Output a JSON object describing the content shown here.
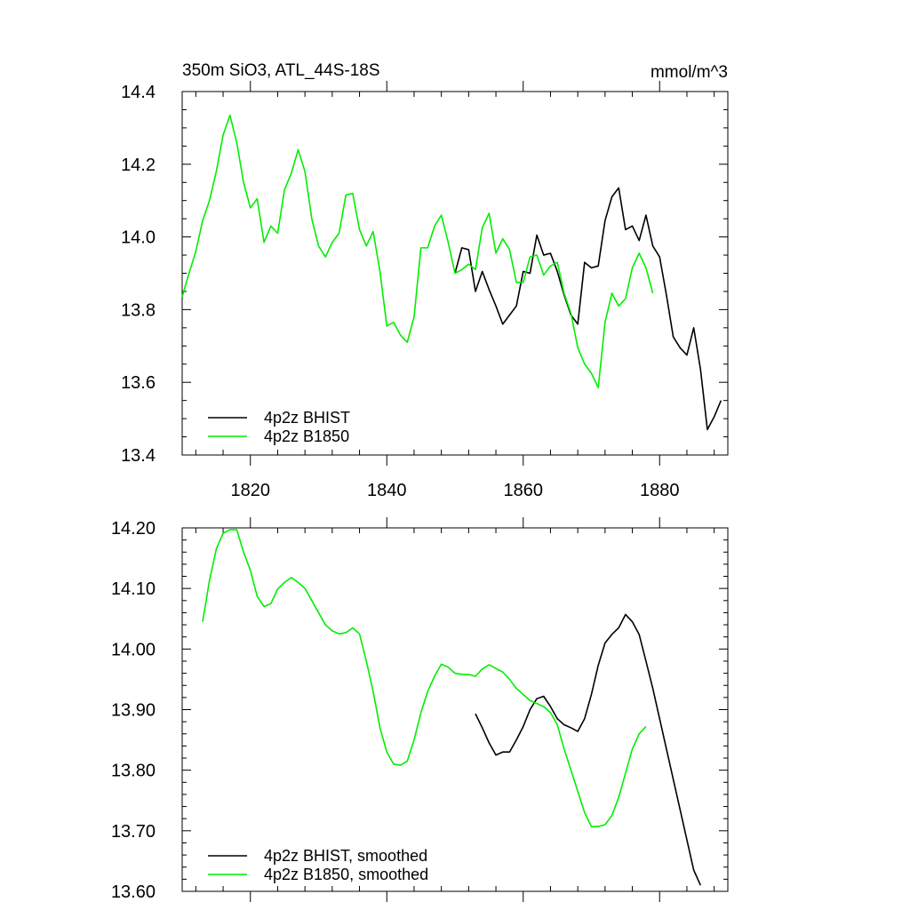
{
  "chart_data": [
    {
      "type": "line",
      "title": "350m SiO3, ATL_44S-18S",
      "units": "mmol/m^3",
      "xlim": [
        1810,
        1890
      ],
      "ylim": [
        13.4,
        14.4
      ],
      "x_ticks": [
        1820,
        1840,
        1860,
        1880
      ],
      "x_tick_labels": [
        "1820",
        "1840",
        "1860",
        "1880"
      ],
      "y_ticks": [
        13.4,
        13.6,
        13.8,
        14.0,
        14.2,
        14.4
      ],
      "y_tick_labels": [
        "13.4",
        "13.6",
        "13.8",
        "14.0",
        "14.2",
        "14.4"
      ],
      "legend_position": "bottom-left",
      "series": [
        {
          "name": "4p2z BHIST",
          "color": "#000000",
          "x_start": 1850,
          "values": [
            13.9,
            13.97,
            13.965,
            13.85,
            13.905,
            13.855,
            13.81,
            13.76,
            13.785,
            13.81,
            13.905,
            13.9,
            14.005,
            13.95,
            13.955,
            13.905,
            13.84,
            13.785,
            13.76,
            13.93,
            13.915,
            13.92,
            14.045,
            14.11,
            14.135,
            14.02,
            14.03,
            13.99,
            14.06,
            13.975,
            13.945,
            13.84,
            13.725,
            13.695,
            13.675,
            13.75,
            13.635,
            13.47,
            13.505,
            13.55
          ]
        },
        {
          "name": "4p2z B1850",
          "color": "#00ee00",
          "x_start": 1810,
          "values": [
            13.835,
            13.9,
            13.96,
            14.045,
            14.1,
            14.18,
            14.28,
            14.335,
            14.26,
            14.15,
            14.08,
            14.105,
            13.985,
            14.03,
            14.01,
            14.13,
            14.175,
            14.24,
            14.18,
            14.05,
            13.975,
            13.945,
            13.985,
            14.01,
            14.115,
            14.12,
            14.02,
            13.975,
            14.015,
            13.905,
            13.755,
            13.765,
            13.73,
            13.71,
            13.78,
            13.97,
            13.97,
            14.03,
            14.06,
            13.985,
            13.9,
            13.91,
            13.925,
            13.91,
            14.025,
            14.065,
            13.955,
            13.995,
            13.965,
            13.875,
            13.875,
            13.945,
            13.95,
            13.895,
            13.92,
            13.93,
            13.845,
            13.79,
            13.695,
            13.65,
            13.625,
            13.585,
            13.765,
            13.845,
            13.81,
            13.83,
            13.915,
            13.955,
            13.915,
            13.845
          ]
        }
      ]
    },
    {
      "type": "line",
      "title": "",
      "units": "",
      "xlim": [
        1810,
        1890
      ],
      "ylim": [
        13.6,
        14.2
      ],
      "x_ticks": [
        1820,
        1840,
        1860,
        1880
      ],
      "y_ticks": [
        13.6,
        13.7,
        13.8,
        13.9,
        14.0,
        14.1,
        14.2
      ],
      "y_tick_labels": [
        "13.60",
        "13.70",
        "13.80",
        "13.90",
        "14.00",
        "14.10",
        "14.20"
      ],
      "legend_position": "bottom-left",
      "series": [
        {
          "name": "4p2z BHIST, smoothed",
          "color": "#000000",
          "x_start": 1853,
          "values": [
            13.893,
            13.87,
            13.845,
            13.825,
            13.83,
            13.83,
            13.85,
            13.872,
            13.9,
            13.918,
            13.922,
            13.905,
            13.885,
            13.875,
            13.87,
            13.864,
            13.885,
            13.925,
            13.973,
            14.01,
            14.024,
            14.035,
            14.057,
            14.045,
            14.024,
            13.98,
            13.935,
            13.885,
            13.835,
            13.785,
            13.735,
            13.685,
            13.635,
            13.61
          ]
        },
        {
          "name": "4p2z B1850, smoothed",
          "color": "#00ee00",
          "x_start": 1813,
          "values": [
            14.045,
            14.113,
            14.165,
            14.191,
            14.197,
            14.197,
            14.16,
            14.13,
            14.087,
            14.07,
            14.075,
            14.099,
            14.11,
            14.118,
            14.11,
            14.1,
            14.08,
            14.06,
            14.04,
            14.03,
            14.025,
            14.027,
            14.035,
            14.025,
            13.98,
            13.93,
            13.87,
            13.83,
            13.81,
            13.808,
            13.815,
            13.85,
            13.895,
            13.93,
            13.955,
            13.975,
            13.97,
            13.96,
            13.958,
            13.958,
            13.955,
            13.967,
            13.974,
            13.968,
            13.962,
            13.95,
            13.935,
            13.925,
            13.915,
            13.91,
            13.905,
            13.895,
            13.875,
            13.835,
            13.8,
            13.765,
            13.73,
            13.707,
            13.707,
            13.71,
            13.725,
            13.755,
            13.795,
            13.835,
            13.86,
            13.872
          ]
        }
      ]
    }
  ]
}
